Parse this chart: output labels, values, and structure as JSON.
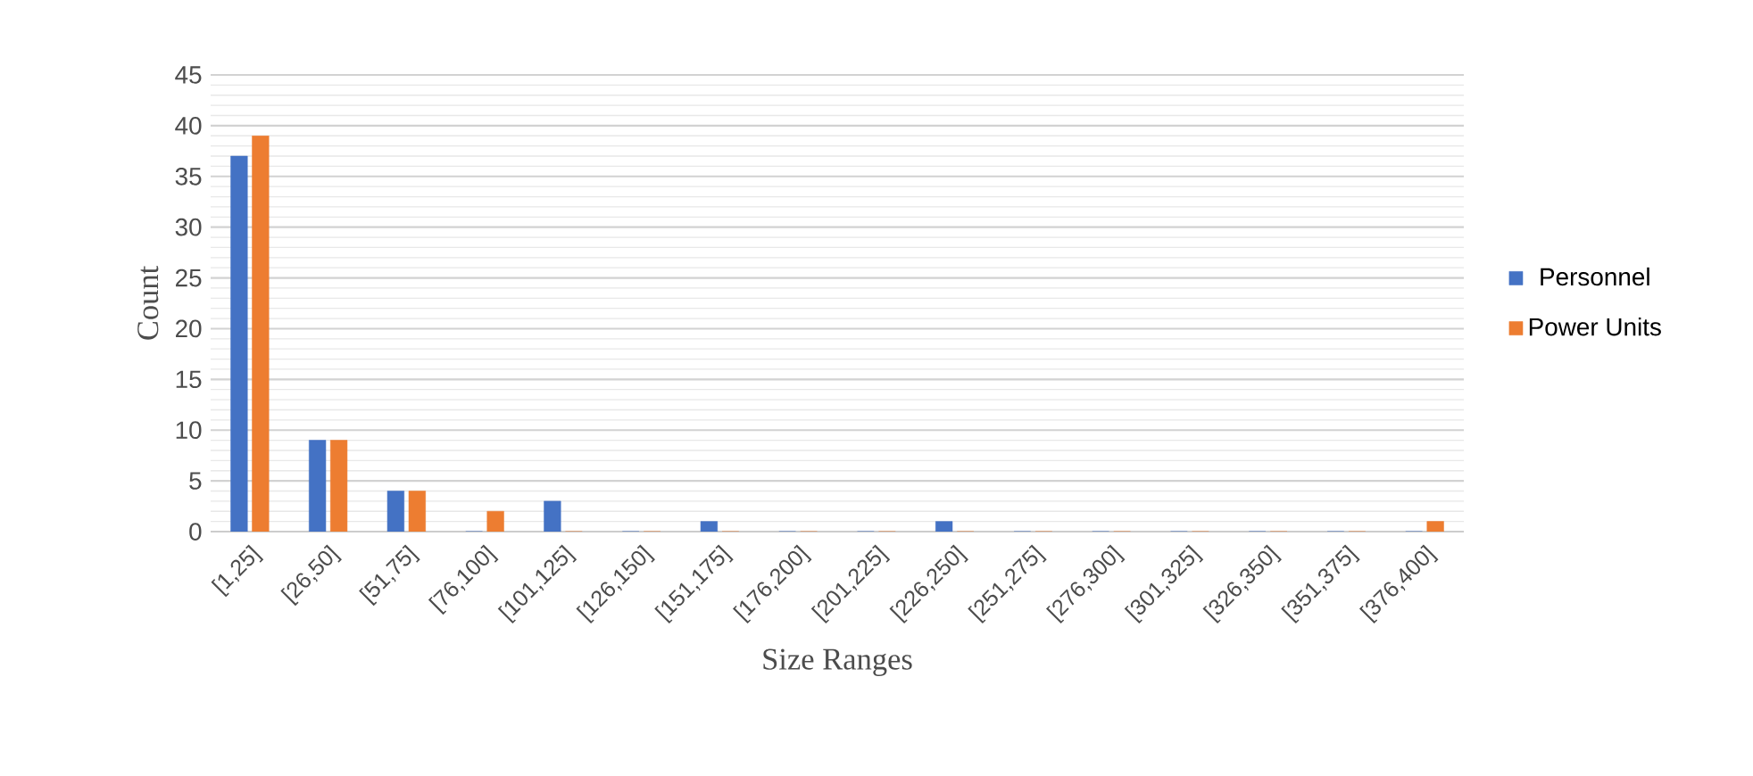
{
  "chart_data": {
    "type": "bar",
    "xlabel": "Size Ranges",
    "ylabel": "Count",
    "categories": [
      "[1,25]",
      "[26,50]",
      "[51,75]",
      "[76,100]",
      "[101,125]",
      "[126,150]",
      "[151,175]",
      "[176,200]",
      "[201,225]",
      "[226,250]",
      "[251,275]",
      "[276,300]",
      "[301,325]",
      "[326,350]",
      "[351,375]",
      "[376,400]"
    ],
    "series": [
      {
        "name": "Personnel",
        "color": "#4472c4",
        "values": [
          37,
          9,
          4,
          0,
          3,
          0,
          1,
          0,
          0,
          1,
          0,
          0,
          0,
          0,
          0,
          0
        ]
      },
      {
        "name": "Power Units",
        "color": "#ed7d31",
        "values": [
          39,
          9,
          4,
          2,
          0,
          0,
          0,
          0,
          0,
          0,
          0,
          0,
          0,
          0,
          0,
          1
        ]
      }
    ],
    "ylim": [
      0,
      45
    ],
    "yticks": [
      0,
      5,
      10,
      15,
      20,
      25,
      30,
      35,
      40,
      45
    ],
    "grid": "y",
    "legend": "right"
  }
}
